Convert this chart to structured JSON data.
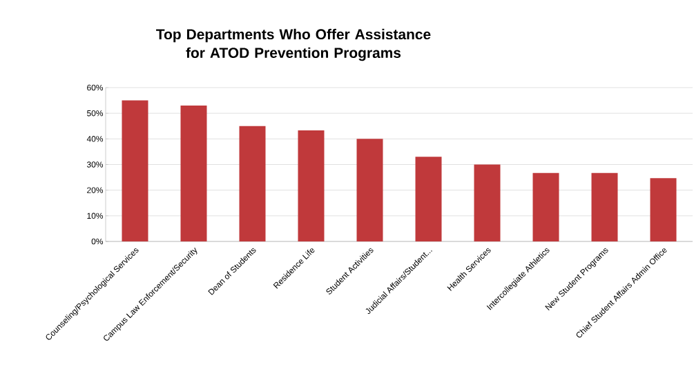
{
  "chart_data": {
    "type": "bar",
    "title": "Top Departments Who Offer Assistance for ATOD Prevention Programs",
    "categories": [
      "Counseling/Psychological Services",
      "Campus Law Enforcement/Security",
      "Dean of Students",
      "Residence Life",
      "Student Activities",
      "Judicial Affairs/Student...",
      "Health Services",
      "Intercollegiate Athletics",
      "New Student Programs",
      "Chief Student Affairs Admin Office"
    ],
    "values": [
      55,
      53,
      45,
      43.3,
      40,
      33,
      30,
      26.7,
      26.7,
      24.7
    ],
    "color": "#c0393b",
    "ylim": [
      0,
      60
    ],
    "yticks": [
      {
        "value": 0,
        "label": "0%"
      },
      {
        "value": 10,
        "label": "10%"
      },
      {
        "value": 20,
        "label": "20%"
      },
      {
        "value": 30,
        "label": "30%"
      },
      {
        "value": 40,
        "label": "40%"
      },
      {
        "value": 50,
        "label": "50%"
      },
      {
        "value": 60,
        "label": "60%"
      }
    ],
    "grid": "y"
  }
}
